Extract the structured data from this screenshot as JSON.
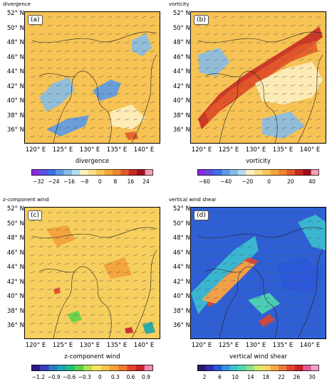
{
  "panels": [
    {
      "title": "divergence",
      "label": "(a)",
      "colorbar_label": "divergence",
      "lat_labels": [
        "52° N",
        "50° N",
        "48° N",
        "46° N",
        "44° N",
        "42° N",
        "40° N",
        "38° N",
        "36° N"
      ],
      "lon_labels": [
        "120° E",
        "125° E",
        "130° E",
        "135° E",
        "140° E"
      ],
      "colorbar_ticks": [
        "−32",
        "−24",
        "−16",
        "−8",
        "0",
        "8",
        "16",
        "24"
      ],
      "colorbar_colors": [
        "#8a2be2",
        "#5b4fe6",
        "#3e6fe8",
        "#5b9ae8",
        "#86bde8",
        "#b8dcf0",
        "#fdf0c0",
        "#fbe08a",
        "#f8c85a",
        "#f4a83a",
        "#ef8530",
        "#e45a2a",
        "#c92a22",
        "#a0101a",
        "#f2a0b4"
      ],
      "background": "#f6c354"
    },
    {
      "title": "vorticity",
      "label": "(b)",
      "colorbar_label": "vorticity",
      "lat_labels": [
        "52° N",
        "50° N",
        "48° N",
        "46° N",
        "44° N",
        "42° N",
        "40° N",
        "38° N",
        "36° N"
      ],
      "lon_labels": [
        "120° E",
        "125° E",
        "130° E",
        "135° E",
        "140° E"
      ],
      "colorbar_ticks": [
        "−60",
        "−40",
        "−20",
        "0",
        "20",
        "40"
      ],
      "colorbar_colors": [
        "#8a2be2",
        "#5b4fe6",
        "#3e6fe8",
        "#5b9ae8",
        "#86bde8",
        "#b8dcf0",
        "#fdf0c0",
        "#fbe08a",
        "#f8c85a",
        "#f4a83a",
        "#ef8530",
        "#e45a2a",
        "#c92a22",
        "#a0101a",
        "#f2a0b4"
      ],
      "background": "#f6c354"
    },
    {
      "title": "z-component wind",
      "label": "(c)",
      "colorbar_label": "z-component wind",
      "lat_labels": [
        "52° N",
        "50° N",
        "48° N",
        "46° N",
        "44° N",
        "42° N",
        "40° N",
        "38° N",
        "36° N"
      ],
      "lon_labels": [
        "120° E",
        "125° E",
        "130° E",
        "135° E",
        "140° E"
      ],
      "colorbar_ticks": [
        "−1.2",
        "−0.9",
        "−0.6",
        "−0.3",
        "0",
        "0.3",
        "0.6",
        "0.9"
      ],
      "colorbar_colors": [
        "#2b1a8a",
        "#3c3fb8",
        "#2b7bc0",
        "#1aa5b0",
        "#22bf7a",
        "#5fd04a",
        "#b8e04a",
        "#f2e85a",
        "#f6c354",
        "#f4a03a",
        "#ef7a30",
        "#e2452a",
        "#c9202a",
        "#f08aa8"
      ],
      "background": "#f3c04e"
    },
    {
      "title": "vertical wind shear",
      "label": "(d)",
      "colorbar_label": "vertical wind shear",
      "lat_labels": [
        "52° N",
        "50° N",
        "48° N",
        "46° N",
        "44° N",
        "42° N",
        "40° N",
        "38° N",
        "36° N"
      ],
      "lon_labels": [
        "120° E",
        "125° E",
        "130° E",
        "135° E",
        "140° E"
      ],
      "colorbar_ticks": [
        "2",
        "6",
        "10",
        "14",
        "18",
        "22",
        "26",
        "30"
      ],
      "colorbar_colors": [
        "#2b1a6a",
        "#2d2fa8",
        "#2a58d8",
        "#3a90e0",
        "#3cc0d0",
        "#4fd8b0",
        "#8fe08a",
        "#d8e870",
        "#f6d860",
        "#f4a84a",
        "#ef7a3a",
        "#e2452a",
        "#c9202a",
        "#e05a90",
        "#f0a0c8"
      ],
      "background": "#2f5fd4"
    }
  ]
}
